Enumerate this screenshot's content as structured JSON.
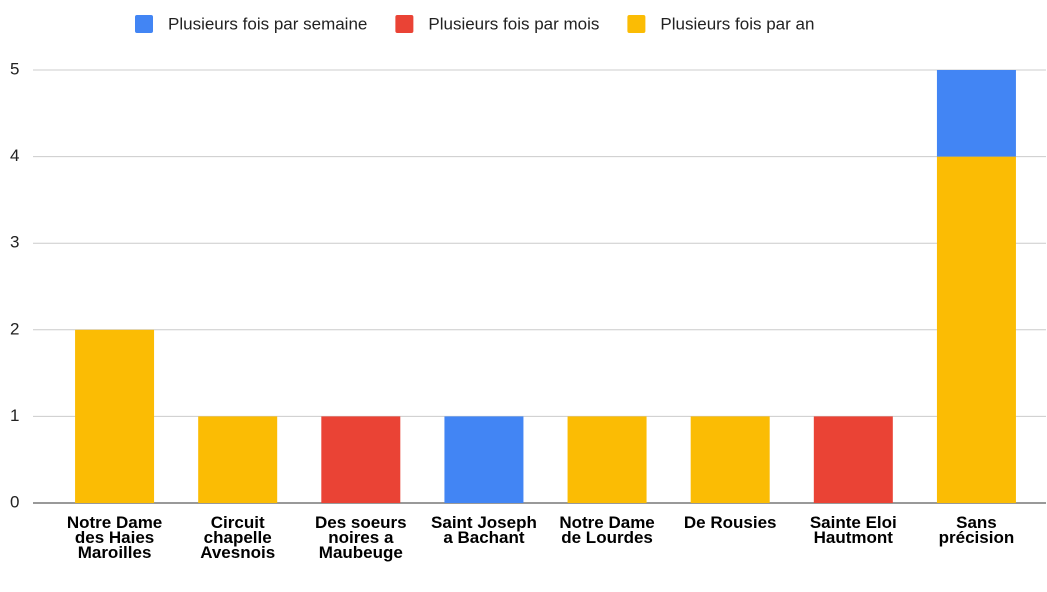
{
  "chart_data": {
    "type": "stacked_bar",
    "categories": [
      "Notre Dame des Haies Maroilles",
      "Circuit chapelle Avesnois",
      "Des soeurs noires a Maubeuge",
      "Saint Joseph a Bachant",
      "Notre Dame de Lourdes",
      "De Rousies",
      "Sainte Eloi Hautmont",
      "Sans précision"
    ],
    "series": [
      {
        "name": "Plusieurs fois par semaine",
        "color": "#4285f4",
        "values": [
          0,
          0,
          0,
          1,
          0,
          0,
          0,
          1
        ]
      },
      {
        "name": "Plusieurs fois par mois",
        "color": "#ea4335",
        "values": [
          0,
          0,
          1,
          0,
          0,
          0,
          1,
          0
        ]
      },
      {
        "name": "Plusieurs fois par an",
        "color": "#fbbc04",
        "values": [
          2,
          1,
          0,
          0,
          1,
          1,
          0,
          4
        ]
      }
    ],
    "ylim": [
      0,
      5
    ],
    "yticks": [
      0,
      1,
      2,
      3,
      4,
      5
    ],
    "grid": true,
    "legend": "top"
  }
}
